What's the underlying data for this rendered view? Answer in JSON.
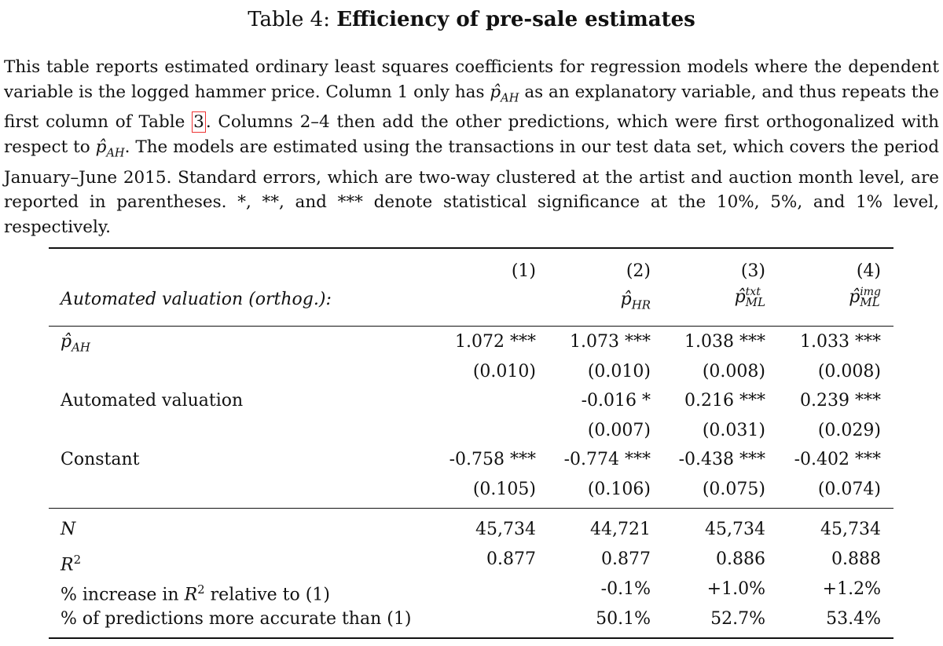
{
  "caption": {
    "prefix": "Table 4:",
    "title": "Efficiency of pre-sale estimates"
  },
  "description": {
    "p1": "This table reports estimated ordinary least squares coefficients for regression models where the dependent variable is the logged hammer price. Column 1 only has ",
    "p1_var": "p̂",
    "p1_sub": "AH",
    "p2": " as an explanatory variable, and thus repeats the first column of Table ",
    "ref": "3",
    "p3": ". Columns 2–4 then add the other predictions, which were first orthogonalized with respect to ",
    "p3_var": "p̂",
    "p3_sub": "AH",
    "p4": ". The models are estimated using the transactions in our test data set, which covers the period January–June 2015. Standard errors, which are two-way clustered at the artist and auction month level, are reported in parentheses. *, **, and *** denote statistical significance at the 10%, 5%, and 1% level, respectively."
  },
  "table": {
    "columns": [
      "(1)",
      "(2)",
      "(3)",
      "(4)"
    ],
    "header_label": "Automated valuation (orthog.):",
    "col_vars": [
      {
        "base": "",
        "sub": "",
        "sup": ""
      },
      {
        "base": "p̂",
        "sub": "HR",
        "sup": ""
      },
      {
        "base": "p̂",
        "sub": "ML",
        "sup": "txt"
      },
      {
        "base": "p̂",
        "sub": "ML",
        "sup": "img"
      }
    ],
    "row_pah": {
      "label_base": "p̂",
      "label_sub": "AH",
      "coefs": [
        "1.072 ***",
        "1.073 ***",
        "1.038 ***",
        "1.033 ***"
      ],
      "se": [
        "(0.010)",
        "(0.010)",
        "(0.008)",
        "(0.008)"
      ]
    },
    "row_auto": {
      "label": "Automated valuation",
      "coefs": [
        "",
        "-0.016 *",
        "0.216 ***",
        "0.239 ***"
      ],
      "se": [
        "",
        "(0.007)",
        "(0.031)",
        "(0.029)"
      ]
    },
    "row_const": {
      "label": "Constant",
      "coefs": [
        "-0.758 ***",
        "-0.774 ***",
        "-0.438 ***",
        "-0.402 ***"
      ],
      "se": [
        "(0.105)",
        "(0.106)",
        "(0.075)",
        "(0.074)"
      ]
    },
    "stats": [
      {
        "label": "N",
        "values": [
          "45,734",
          "44,721",
          "45,734",
          "45,734"
        ]
      },
      {
        "label": "R",
        "label_sup": "2",
        "values": [
          "0.877",
          "0.877",
          "0.886",
          "0.888"
        ]
      },
      {
        "label_pre": "% increase in ",
        "label_var": "R",
        "label_sup": "2",
        "label_post": " relative to (1)",
        "values": [
          "",
          "-0.1%",
          "+1.0%",
          "+1.2%"
        ]
      },
      {
        "label": "% of predictions more accurate than (1)",
        "values": [
          "",
          "50.1%",
          "52.7%",
          "53.4%"
        ]
      }
    ]
  }
}
